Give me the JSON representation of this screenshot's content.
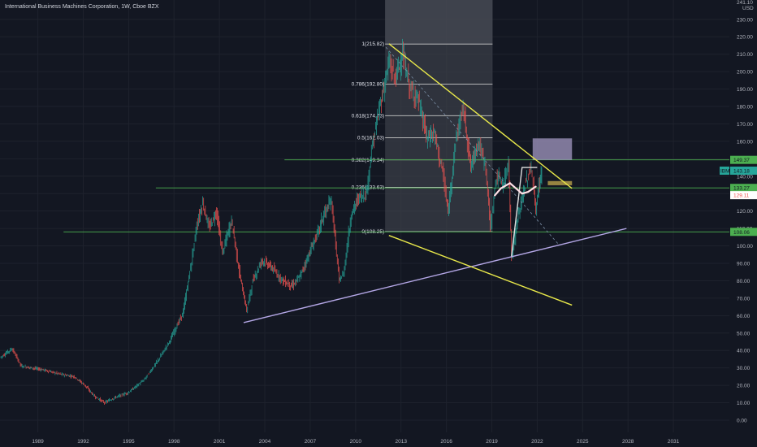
{
  "chart_data": {
    "type": "candlestick",
    "title": "International Business Machines Corporation, 1W, Cboe BZX",
    "currency_label": "USD",
    "symbol_tag": "IBM",
    "y_axis": {
      "ylim": [
        -7,
        241.1
      ],
      "ticks": [
        "0.00",
        "10.00",
        "20.00",
        "30.00",
        "40.00",
        "50.00",
        "60.00",
        "70.00",
        "80.00",
        "90.00",
        "100.00",
        "110.00",
        "120.00",
        "130.00",
        "140.00",
        "150.00",
        "160.00",
        "170.00",
        "180.00",
        "190.00",
        "200.00",
        "210.00",
        "220.00",
        "230.00"
      ],
      "top_tick": "241.10"
    },
    "x_axis": {
      "xlim": [
        1986.5,
        2034.7
      ],
      "ticks": [
        "1989",
        "1992",
        "1995",
        "1998",
        "2001",
        "2004",
        "2007",
        "2010",
        "2013",
        "2016",
        "2019",
        "2022",
        "2025",
        "2028",
        "2031"
      ]
    },
    "price_series": [
      [
        1986.5,
        36
      ],
      [
        1987.3,
        41
      ],
      [
        1987.9,
        31
      ],
      [
        1988.6,
        30
      ],
      [
        1989.3,
        29
      ],
      [
        1990.2,
        27
      ],
      [
        1990.7,
        26
      ],
      [
        1991.4,
        25
      ],
      [
        1992.1,
        20
      ],
      [
        1992.7,
        14
      ],
      [
        1993.4,
        10
      ],
      [
        1994.1,
        13
      ],
      [
        1995.0,
        16
      ],
      [
        1996.0,
        23
      ],
      [
        1997.0,
        35
      ],
      [
        1997.8,
        47
      ],
      [
        1998.6,
        62
      ],
      [
        1999.1,
        88
      ],
      [
        1999.5,
        112
      ],
      [
        1999.9,
        125
      ],
      [
        2000.3,
        110
      ],
      [
        2000.8,
        120
      ],
      [
        2001.2,
        96
      ],
      [
        2001.8,
        115
      ],
      [
        2002.3,
        85
      ],
      [
        2002.8,
        63
      ],
      [
        2003.2,
        80
      ],
      [
        2003.8,
        92
      ],
      [
        2004.4,
        88
      ],
      [
        2005.2,
        80
      ],
      [
        2005.8,
        77
      ],
      [
        2006.3,
        82
      ],
      [
        2006.9,
        95
      ],
      [
        2007.5,
        108
      ],
      [
        2007.9,
        118
      ],
      [
        2008.4,
        126
      ],
      [
        2008.9,
        80
      ],
      [
        2009.2,
        84
      ],
      [
        2009.7,
        118
      ],
      [
        2010.2,
        128
      ],
      [
        2010.7,
        130
      ],
      [
        2011.1,
        158
      ],
      [
        2011.6,
        180
      ],
      [
        2012.2,
        205
      ],
      [
        2012.6,
        196
      ],
      [
        2013.1,
        210
      ],
      [
        2013.6,
        190
      ],
      [
        2014.1,
        185
      ],
      [
        2014.7,
        162
      ],
      [
        2015.2,
        165
      ],
      [
        2015.8,
        140
      ],
      [
        2016.1,
        118
      ],
      [
        2016.6,
        160
      ],
      [
        2017.1,
        180
      ],
      [
        2017.6,
        145
      ],
      [
        2018.1,
        160
      ],
      [
        2018.6,
        145
      ],
      [
        2018.9,
        110
      ],
      [
        2019.3,
        140
      ],
      [
        2019.8,
        135
      ],
      [
        2020.1,
        150
      ],
      [
        2020.3,
        94
      ],
      [
        2020.8,
        120
      ],
      [
        2021.2,
        135
      ],
      [
        2021.6,
        145
      ],
      [
        2021.9,
        120
      ],
      [
        2022.1,
        135
      ],
      [
        2022.3,
        143.18
      ]
    ],
    "current_price": "143.18",
    "price_labels": [
      {
        "value": 149.37,
        "label": "149.37",
        "color": "#4caf50"
      },
      {
        "value": 133.27,
        "label": "133.27",
        "color": "#4caf50"
      },
      {
        "value": 129.11,
        "label": "129.11",
        "color": "#ffffff"
      },
      {
        "value": 108.06,
        "label": "108.06",
        "color": "#4caf50"
      }
    ],
    "fibonacci": {
      "x_start": 2011.95,
      "x_end": 2019.05,
      "levels": [
        {
          "ratio": "1",
          "value": 215.82
        },
        {
          "ratio": "0.786",
          "value": 192.8
        },
        {
          "ratio": "0.618",
          "value": 174.73
        },
        {
          "ratio": "0.5",
          "value": 162.03
        },
        {
          "ratio": "0.382",
          "value": 149.34
        },
        {
          "ratio": "0.236",
          "value": 133.63
        },
        {
          "ratio": "0",
          "value": 108.25
        }
      ]
    },
    "horizontal_lines": [
      {
        "value": 149.37,
        "x_start": 2005.3
      },
      {
        "value": 133.27,
        "x_start": 1996.8
      },
      {
        "value": 108.06,
        "x_start": 1990.7
      }
    ],
    "shaded_range": {
      "x_start": 2011.95,
      "x_end": 2019.05
    },
    "trendlines": [
      {
        "color": "#b4a7e6",
        "points": [
          [
            2002.6,
            56
          ],
          [
            2027.9,
            110
          ]
        ]
      },
      {
        "color": "#e8e84a",
        "points": [
          [
            2012.2,
            216
          ],
          [
            2024.3,
            133
          ]
        ]
      },
      {
        "color": "#e8e84a",
        "points": [
          [
            2012.2,
            106
          ],
          [
            2024.3,
            66
          ]
        ]
      },
      {
        "color": "#7b8fa6",
        "points": [
          [
            2012.0,
            214
          ],
          [
            2023.4,
            101
          ]
        ],
        "dashed": true
      },
      {
        "color": "#e0e0e0",
        "points": [
          [
            2020.3,
            94
          ],
          [
            2021.0,
            145
          ],
          [
            2022.0,
            145
          ]
        ]
      }
    ],
    "boxes": [
      {
        "x": [
          2021.7,
          2024.3
        ],
        "y": [
          149.3,
          161.7
        ],
        "color": "#9a90b8"
      },
      {
        "x": [
          2022.7,
          2024.3
        ],
        "y": [
          134.8,
          137.2
        ],
        "color": "#b8a04a"
      }
    ],
    "curve": {
      "color": "#ffdfe6",
      "points": [
        [
          2019.2,
          129
        ],
        [
          2019.6,
          133
        ],
        [
          2020.2,
          136
        ],
        [
          2020.6,
          133
        ],
        [
          2021.0,
          130
        ],
        [
          2021.4,
          131
        ],
        [
          2021.9,
          134
        ]
      ]
    }
  }
}
